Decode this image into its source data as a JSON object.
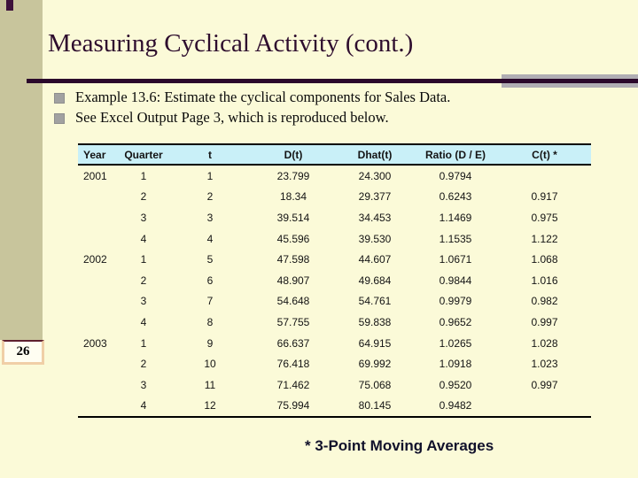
{
  "slide": {
    "title": "Measuring Cyclical Activity (cont.)",
    "page_number": "26",
    "bullets": [
      "Example 13.6: Estimate the cyclical components for Sales Data.",
      "See Excel Output Page 3, which is reproduced below."
    ],
    "footnote": "* 3-Point Moving Averages"
  },
  "table": {
    "columns": [
      "Year",
      "Quarter",
      "t",
      "D(t)",
      "Dhat(t)",
      "Ratio (D / E)",
      "C(t) *"
    ],
    "rows": [
      [
        "2001",
        "1",
        "1",
        "23.799",
        "24.300",
        "0.9794",
        ""
      ],
      [
        "",
        "2",
        "2",
        "18.34",
        "29.377",
        "0.6243",
        "0.917"
      ],
      [
        "",
        "3",
        "3",
        "39.514",
        "34.453",
        "1.1469",
        "0.975"
      ],
      [
        "",
        "4",
        "4",
        "45.596",
        "39.530",
        "1.1535",
        "1.122"
      ],
      [
        "2002",
        "1",
        "5",
        "47.598",
        "44.607",
        "1.0671",
        "1.068"
      ],
      [
        "",
        "2",
        "6",
        "48.907",
        "49.684",
        "0.9844",
        "1.016"
      ],
      [
        "",
        "3",
        "7",
        "54.648",
        "54.761",
        "0.9979",
        "0.982"
      ],
      [
        "",
        "4",
        "8",
        "57.755",
        "59.838",
        "0.9652",
        "0.997"
      ],
      [
        "2003",
        "1",
        "9",
        "66.637",
        "64.915",
        "1.0265",
        "1.028"
      ],
      [
        "",
        "2",
        "10",
        "76.418",
        "69.992",
        "1.0918",
        "1.023"
      ],
      [
        "",
        "3",
        "11",
        "71.462",
        "75.068",
        "0.9520",
        "0.997"
      ],
      [
        "",
        "4",
        "12",
        "75.994",
        "80.145",
        "0.9482",
        ""
      ]
    ]
  },
  "colors": {
    "background": "#FBFAD8",
    "sidebar": "#C8C59C",
    "title_accent": "#2E0D2E",
    "rule_gray": "#B0ADB3",
    "table_header_bg": "#C9F0F8",
    "page_box_border": "#F0CFA7"
  }
}
